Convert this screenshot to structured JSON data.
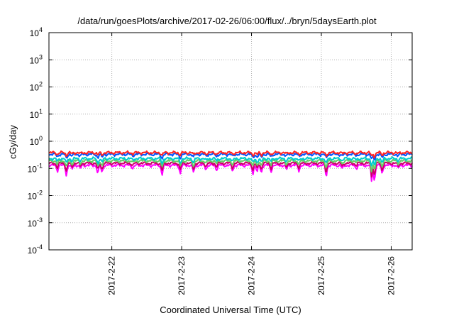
{
  "chart_data": {
    "type": "line",
    "title": "/data/run/goesPlots/archive/2017-02-26/06:00/flux/../bryn/5daysEarth.plot",
    "xlabel": "Coordinated Universal Time (UTC)",
    "ylabel": "cGy/day",
    "yscale": "log",
    "ylim": [
      0.0001,
      10000
    ],
    "y_ticks": [
      {
        "exp": -4,
        "label": "10",
        "sup": "-4"
      },
      {
        "exp": -3,
        "label": "10",
        "sup": "-3"
      },
      {
        "exp": -2,
        "label": "10",
        "sup": "-2"
      },
      {
        "exp": -1,
        "label": "10",
        "sup": "-1"
      },
      {
        "exp": 0,
        "label": "10",
        "sup": "0"
      },
      {
        "exp": 1,
        "label": "10",
        "sup": "1"
      },
      {
        "exp": 2,
        "label": "10",
        "sup": "2"
      },
      {
        "exp": 3,
        "label": "10",
        "sup": "3"
      },
      {
        "exp": 4,
        "label": "10",
        "sup": "4"
      }
    ],
    "xlim_days": [
      21.1,
      26.3
    ],
    "x_ticks": [
      {
        "day": 22,
        "label": "2017-2-22"
      },
      {
        "day": 23,
        "label": "2017-2-23"
      },
      {
        "day": 24,
        "label": "2017-2-24"
      },
      {
        "day": 25,
        "label": "2017-2-25"
      },
      {
        "day": 26,
        "label": "2017-2-26"
      }
    ],
    "grid": true,
    "dips": [
      {
        "day": 21.22,
        "depth": 0.35
      },
      {
        "day": 21.35,
        "depth": 0.55
      },
      {
        "day": 21.43,
        "depth": 0.3
      },
      {
        "day": 21.55,
        "depth": 0.25
      },
      {
        "day": 21.8,
        "depth": 0.5
      },
      {
        "day": 21.86,
        "depth": 0.45
      },
      {
        "day": 22.3,
        "depth": 0.2
      },
      {
        "day": 22.72,
        "depth": 0.55
      },
      {
        "day": 22.98,
        "depth": 0.5
      },
      {
        "day": 23.17,
        "depth": 0.45
      },
      {
        "day": 23.35,
        "depth": 0.25
      },
      {
        "day": 23.5,
        "depth": 0.3
      },
      {
        "day": 23.73,
        "depth": 0.35
      },
      {
        "day": 24.02,
        "depth": 0.5
      },
      {
        "day": 24.08,
        "depth": 0.45
      },
      {
        "day": 24.14,
        "depth": 0.45
      },
      {
        "day": 24.28,
        "depth": 0.4
      },
      {
        "day": 24.5,
        "depth": 0.3
      },
      {
        "day": 24.68,
        "depth": 0.35
      },
      {
        "day": 25.07,
        "depth": 0.6
      },
      {
        "day": 25.3,
        "depth": 0.25
      },
      {
        "day": 25.5,
        "depth": 0.2
      },
      {
        "day": 25.72,
        "depth": 0.75
      },
      {
        "day": 25.76,
        "depth": 0.75
      },
      {
        "day": 25.87,
        "depth": 0.5
      },
      {
        "day": 26.1,
        "depth": 0.25
      }
    ],
    "series": [
      {
        "color": "#ff00ff",
        "base": 0.13
      },
      {
        "color": "#cc0066",
        "base": 0.155
      },
      {
        "color": "#66cc66",
        "base": 0.19
      },
      {
        "color": "#00cccc",
        "base": 0.23
      },
      {
        "color": "#0055ff",
        "base": 0.33
      },
      {
        "color": "#ff2222",
        "base": 0.38
      }
    ]
  }
}
